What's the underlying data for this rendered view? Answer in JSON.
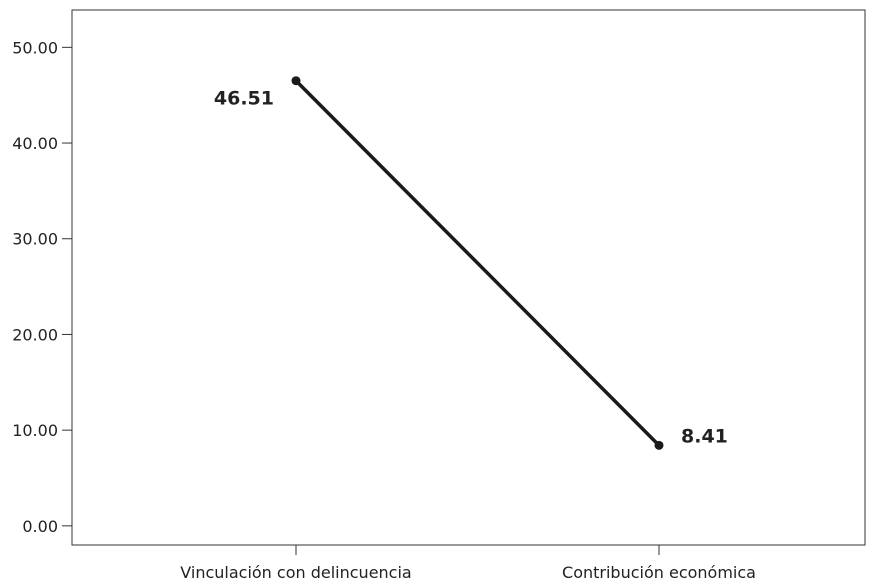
{
  "chart_data": {
    "type": "line",
    "title": "",
    "xlabel": "",
    "ylabel": "",
    "categories": [
      "Vinculación con delincuencia",
      "Contribución económica"
    ],
    "series": [
      {
        "values": [
          46.51,
          8.41
        ],
        "data_labels": [
          "46.51",
          "8.41"
        ]
      }
    ],
    "yticks": [
      "0.00",
      "10.00",
      "20.00",
      "30.00",
      "40.00",
      "50.00"
    ],
    "ylim": [
      -2,
      53.9
    ],
    "grid": false,
    "legend": "none",
    "colors": {
      "line": "#1a1a1a",
      "axis": "#333333",
      "text": "#222222"
    }
  }
}
